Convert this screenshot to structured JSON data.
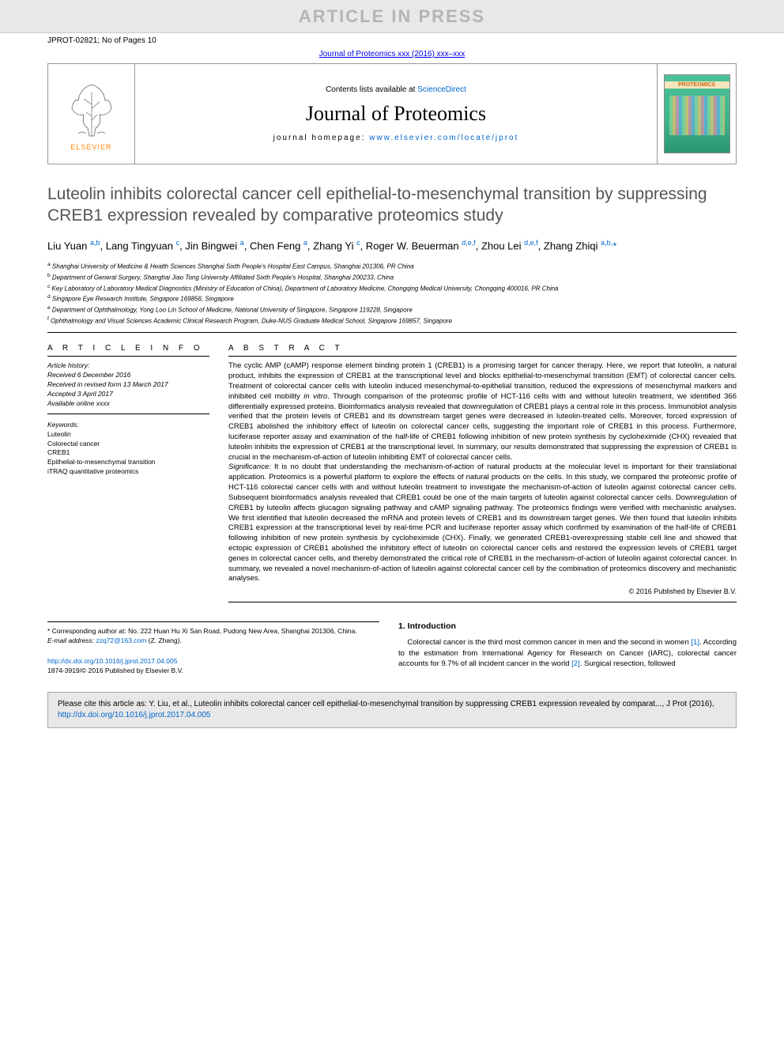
{
  "banner": {
    "text": "ARTICLE IN PRESS"
  },
  "header": {
    "article_id": "JPROT-02821; No of Pages 10",
    "journal_ref": "Journal of Proteomics xxx (2016) xxx–xxx"
  },
  "journal_box": {
    "elsevier": "ELSEVIER",
    "contents_prefix": "Contents lists available at ",
    "contents_link": "ScienceDirect",
    "journal_name": "Journal of Proteomics",
    "homepage_label": "journal homepage: ",
    "homepage_url": "www.elsevier.com/locate/jprot",
    "cover_label": "PROTEOMICS"
  },
  "article": {
    "title": "Luteolin inhibits colorectal cancer cell epithelial-to-mesenchymal transition by suppressing CREB1 expression revealed by comparative proteomics study",
    "authors_html": "Liu Yuan <sup class='aff'>a,b</sup>, Lang Tingyuan <sup class='aff'>c</sup>, Jin Bingwei <sup class='aff'>a</sup>, Chen Feng <sup class='aff'>a</sup>, Zhang Yi <sup class='aff'>c</sup>, Roger W. Beuerman <sup class='aff'>d,e,f</sup>, Zhou Lei <sup class='aff'>d,e,f</sup>, Zhang Zhiqi <sup class='aff'>a,b,</sup><span class='ast'>*</span>",
    "affiliations": [
      {
        "k": "a",
        "t": "Shanghai University of Medicine & Health Sciences Shanghai Sixth People's Hospital East Campus, Shanghai 201306, PR China"
      },
      {
        "k": "b",
        "t": "Department of General Surgery, Shanghai Jiao Tong University Affiliated Sixth People's Hospital, Shanghai 200233, China"
      },
      {
        "k": "c",
        "t": "Key Laboratory of Laboratory Medical Diagnostics (Ministry of Education of China), Department of Laboratory Medicine, Chongqing Medical University, Chongqing 400016, PR China"
      },
      {
        "k": "d",
        "t": "Singapore Eye Research Institute, Singapore 169856, Singapore"
      },
      {
        "k": "e",
        "t": "Department of Ophthalmology, Yong Loo Lin School of Medicine, National University of Singapore, Singapore 119228, Singapore"
      },
      {
        "k": "f",
        "t": "Ophthalmology and Visual Sciences Academic Clinical Research Program, Duke-NUS Graduate Medical School, Singapore 169857, Singapore"
      }
    ]
  },
  "info": {
    "label": "A R T I C L E   I N F O",
    "history_label": "Article history:",
    "received": "Received 6 December 2016",
    "revised": "Received in revised form 13 March 2017",
    "accepted": "Accepted 3 April 2017",
    "online": "Available online xxxx",
    "keywords_label": "Keywords:",
    "keywords": [
      "Luteolin",
      "Colorectal cancer",
      "CREB1",
      "Epithelial-to-mesenchymal transition",
      "iTRAQ quantitative proteomics"
    ]
  },
  "abstract": {
    "label": "A B S T R A C T",
    "body": "The cyclic AMP (cAMP) response element binding protein 1 (CREB1) is a promising target for cancer therapy. Here, we report that luteolin, a natural product, inhibits the expression of CREB1 at the transcriptional level and blocks epithelial-to-mesenchymal transition (EMT) of colorectal cancer cells. Treatment of colorectal cancer cells with luteolin induced mesenchymal-to-epithelial transition, reduced the expressions of mesenchymal markers and inhibited cell mobility in vitro. Through comparison of the proteomic profile of HCT-116 cells with and without luteolin treatment, we identified 366 differentially expressed proteins. Bioinformatics analysis revealed that downregulation of CREB1 plays a central role in this process. Immunoblot analysis verified that the protein levels of CREB1 and its downstream target genes were decreased in luteolin-treated cells. Moreover, forced expression of CREB1 abolished the inhibitory effect of luteolin on colorectal cancer cells, suggesting the important role of CREB1 in this process. Furthermore, luciferase reporter assay and examination of the half-life of CREB1 following inhibition of new protein synthesis by cycloheximide (CHX) revealed that luteolin inhibits the expression of CREB1 at the transcriptional level. In summary, our results demonstrated that suppressing the expression of CREB1 is crucial in the mechanism-of-action of luteolin inhibiting EMT of colorectal cancer cells.",
    "significance_label": "Significance:",
    "significance": "It is no doubt that understanding the mechanism-of-action of natural products at the molecular level is important for their translational application. Proteomics is a powerful platform to explore the effects of natural products on the cells. In this study, we compared the proteomic profile of HCT-116 colorectal cancer cells with and without luteolin treatment to investigate the mechanism-of-action of luteolin against colorectal cancer cells. Subsequent bioinformatics analysis revealed that CREB1 could be one of the main targets of luteolin against colorectal cancer cells. Downregulation of CREB1 by luteolin affects glucagon signaling pathway and cAMP signaling pathway. The proteomics findings were verified with mechanistic analyses. We first identified that luteolin decreased the mRNA and protein levels of CREB1 and its downstream target genes. We then found that luteolin inhibits CREB1 expression at the transcriptional level by real-time PCR and luciferase reporter assay which confirmed by examination of the half-life of CREB1 following inhibition of new protein synthesis by cycloheximide (CHX). Finally, we generated CREB1-overexpressing stable cell line and showed that ectopic expression of CREB1 abolished the inhibitory effect of luteolin on colorectal cancer cells and restored the expression levels of CREB1 target genes in colorectal cancer cells, and thereby demonstrated the critical role of CREB1 in the mechanism-of-action of luteolin against colorectal cancer. In summary, we revealed a novel mechanism-of-action of luteolin against colorectal cancer cell by the combination of proteomics discovery and mechanistic analyses.",
    "copyright": "© 2016 Published by Elsevier B.V."
  },
  "intro": {
    "heading": "1. Introduction",
    "text": "Colorectal cancer is the third most common cancer in men and the second in women [1]. According to the estimation from International Agency for Research on Cancer (IARC), colorectal cancer accounts for 9.7% of all incident cancer in the world [2]. Surgical resection, followed",
    "ref1": "[1]",
    "ref2": "[2]"
  },
  "corr": {
    "star": "*",
    "text": "Corresponding author at: No. 222 Huan Hu Xi San Road, Pudong New Area, Shanghai 201306, China.",
    "email_label": "E-mail address:",
    "email": "zzq72@163.com",
    "email_who": "(Z. Zhang)."
  },
  "doi": {
    "url": "http://dx.doi.org/10.1016/j.jprot.2017.04.005",
    "issn": "1874-3919/© 2016 Published by Elsevier B.V."
  },
  "cite": {
    "text": "Please cite this article as: Y. Liu, et al., Luteolin inhibits colorectal cancer cell epithelial-to-mesenchymal transition by suppressing CREB1 expression revealed by comparat..., J Prot (2016), ",
    "url": "http://dx.doi.org/10.1016/j.jprot.2017.04.005"
  },
  "colors": {
    "link": "#0066cc",
    "banner_bg": "#e8e8e8",
    "banner_text": "#b5b5b5",
    "elsevier_orange": "#ff8400"
  }
}
